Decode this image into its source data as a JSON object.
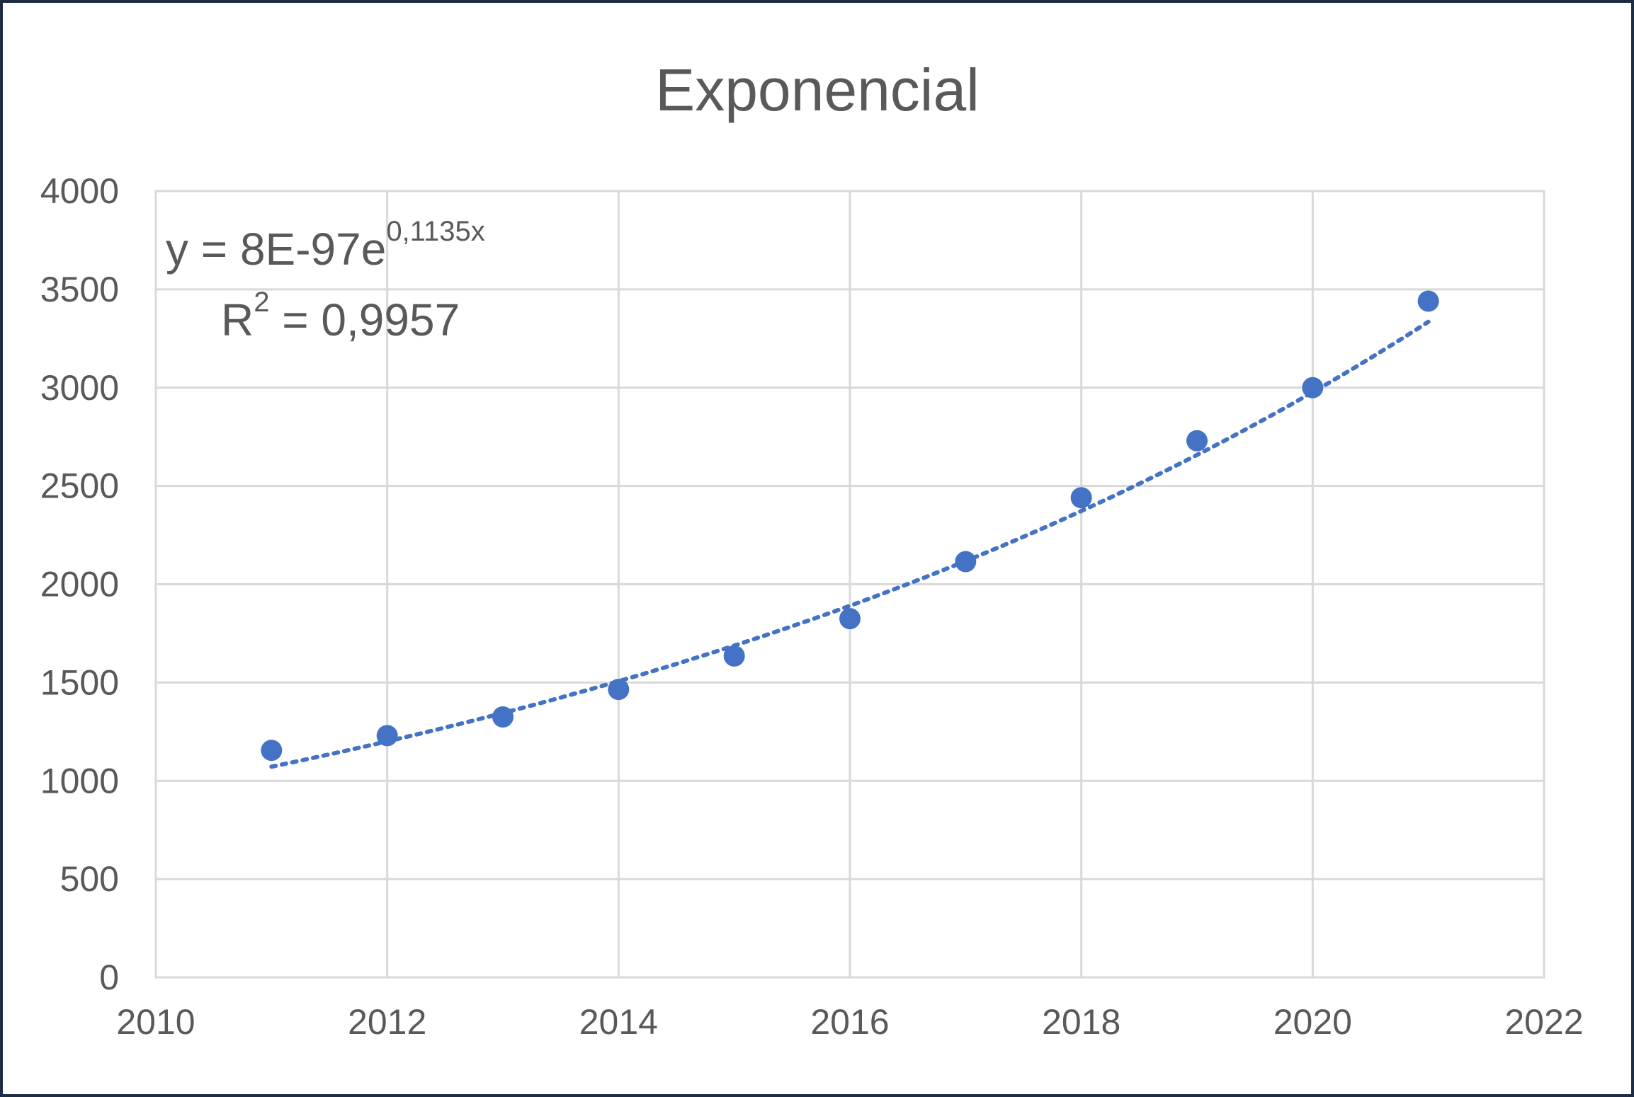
{
  "chart_data": {
    "type": "scatter",
    "title": "Exponencial",
    "xlabel": "",
    "ylabel": "",
    "xlim": [
      2010,
      2022
    ],
    "ylim": [
      0,
      4000
    ],
    "x_ticks": [
      2010,
      2012,
      2014,
      2016,
      2018,
      2020,
      2022
    ],
    "y_ticks": [
      0,
      500,
      1000,
      1500,
      2000,
      2500,
      3000,
      3500,
      4000
    ],
    "grid": true,
    "legend": "none",
    "points": [
      {
        "x": 2011,
        "y": 1155
      },
      {
        "x": 2012,
        "y": 1230
      },
      {
        "x": 2013,
        "y": 1325
      },
      {
        "x": 2014,
        "y": 1465
      },
      {
        "x": 2015,
        "y": 1635
      },
      {
        "x": 2016,
        "y": 1825
      },
      {
        "x": 2017,
        "y": 2115
      },
      {
        "x": 2018,
        "y": 2440
      },
      {
        "x": 2019,
        "y": 2730
      },
      {
        "x": 2020,
        "y": 3000
      },
      {
        "x": 2021,
        "y": 3440
      }
    ],
    "trendline": {
      "type": "exponential",
      "coef_a": 8e-97,
      "coef_b": 0.1135,
      "equation_prefix": "y = 8E-97e",
      "equation_exponent": "0,1135x",
      "r2_prefix": "R",
      "r2_exponent": "2",
      "r2_suffix": " = 0,9957"
    },
    "colors": {
      "marker": "#4472c4",
      "trendline": "#4472c4",
      "grid": "#d9d9d9",
      "text": "#595959",
      "frame": "#1d2b45"
    }
  }
}
